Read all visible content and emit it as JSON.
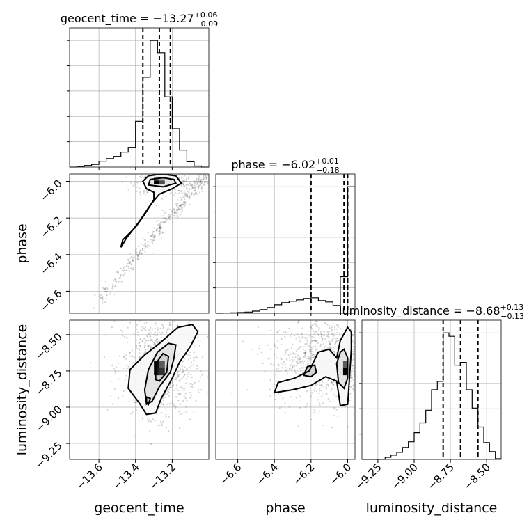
{
  "chart_data": {
    "type": "corner",
    "parameters": [
      {
        "name": "geocent_time",
        "label": "geocent_time",
        "title_prefix": "geocent_time = ",
        "median": "−13.27",
        "plus": "+0.06",
        "minus": "−0.09",
        "range": [
          -13.76,
          -13.0
        ],
        "ticks": [
          -13.6,
          -13.4,
          -13.2
        ],
        "tick_labels": [
          "−13.6",
          "−13.4",
          "−13.2"
        ],
        "quantiles": [
          -13.36,
          -13.27,
          -13.21
        ],
        "hist_bins": [
          -13.76,
          -13.72,
          -13.68,
          -13.64,
          -13.6,
          -13.56,
          -13.52,
          -13.48,
          -13.44,
          -13.4,
          -13.36,
          -13.32,
          -13.28,
          -13.24,
          -13.2,
          -13.16,
          -13.12,
          -13.08,
          -13.04,
          -13.0
        ],
        "hist_counts": [
          0,
          0.2,
          0.6,
          1.0,
          2.2,
          3.2,
          4.0,
          5.6,
          7.4,
          17.2,
          33.8,
          47.6,
          43.0,
          26.4,
          14.4,
          6.4,
          2.0,
          0.4,
          0
        ]
      },
      {
        "name": "phase",
        "label": "phase",
        "title_prefix": "phase = ",
        "median": "−6.02",
        "plus": "+0.01",
        "minus": "−0.18",
        "range": [
          -6.72,
          -5.96
        ],
        "ticks": [
          -6.6,
          -6.4,
          -6.2,
          -6.0
        ],
        "tick_labels": [
          "−6.6",
          "−6.4",
          "−6.2",
          "−6.0"
        ],
        "quantiles": [
          -6.2,
          -6.02,
          -6.0
        ],
        "hist_bins": [
          -6.72,
          -6.68,
          -6.64,
          -6.6,
          -6.56,
          -6.52,
          -6.48,
          -6.44,
          -6.4,
          -6.36,
          -6.32,
          -6.28,
          -6.24,
          -6.2,
          -6.16,
          -6.12,
          -6.08,
          -6.04,
          -6.0,
          -5.96
        ],
        "hist_counts": [
          0,
          0.1,
          0.2,
          0.3,
          0.5,
          0.9,
          1.5,
          2.4,
          3.6,
          4.5,
          5.1,
          5.7,
          6.3,
          6.6,
          5.4,
          4.8,
          3.3,
          15.6,
          54.0
        ]
      },
      {
        "name": "luminosity_distance",
        "label": "luminosity_distance",
        "title_prefix": "luminosity_distance = ",
        "median": "−8.68",
        "plus": "+0.13",
        "minus": "−0.13",
        "range": [
          -9.36,
          -8.4
        ],
        "ticks": [
          -9.25,
          -9.0,
          -8.75,
          -8.5
        ],
        "tick_labels": [
          "−9.25",
          "−9.00",
          "−8.75",
          "−8.50"
        ],
        "quantiles": [
          -8.8,
          -8.68,
          -8.56
        ],
        "hist_bins": [
          -9.36,
          -9.32,
          -9.28,
          -9.24,
          -9.2,
          -9.16,
          -9.12,
          -9.08,
          -9.04,
          -9.0,
          -8.96,
          -8.92,
          -8.88,
          -8.84,
          -8.8,
          -8.76,
          -8.72,
          -8.68,
          -8.64,
          -8.6,
          -8.56,
          -8.52,
          -8.48,
          -8.44,
          -8.4
        ],
        "hist_counts": [
          0,
          0,
          0,
          0,
          0.6,
          1.2,
          2.0,
          3.4,
          5.0,
          7.6,
          10.4,
          14.0,
          19.8,
          22.2,
          36.0,
          35.0,
          26.8,
          27.6,
          19.8,
          14.6,
          9.2,
          4.8,
          2.2,
          0.2
        ]
      }
    ],
    "pairs": [
      {
        "x": "geocent_time",
        "y": "phase",
        "cloud": {
          "type": "line",
          "from": [
            -13.61,
            -6.66
          ],
          "to": [
            -13.01,
            -5.96
          ],
          "spread_x": 0.035,
          "spread_y": 0.03,
          "count": 380
        },
        "cloud2": {
          "center": [
            -13.24,
            -6.01
          ],
          "spread": [
            0.08,
            0.03
          ],
          "count": 260
        },
        "contours": [
          [
            [
              -13.48,
              -6.36
            ],
            [
              -13.47,
              -6.32
            ],
            [
              -13.4,
              -6.25
            ],
            [
              -13.35,
              -6.18
            ],
            [
              -13.3,
              -6.1
            ],
            [
              -13.3,
              -6.06
            ],
            [
              -13.34,
              -6.04
            ],
            [
              -13.36,
              -6.0
            ],
            [
              -13.33,
              -5.97
            ],
            [
              -13.26,
              -5.96
            ],
            [
              -13.18,
              -5.97
            ],
            [
              -13.15,
              -6.01
            ],
            [
              -13.2,
              -6.04
            ],
            [
              -13.27,
              -6.07
            ],
            [
              -13.32,
              -6.13
            ],
            [
              -13.38,
              -6.22
            ],
            [
              -13.45,
              -6.31
            ],
            [
              -13.48,
              -6.36
            ]
          ],
          [
            [
              -13.33,
              -6.02
            ],
            [
              -13.32,
              -5.99
            ],
            [
              -13.25,
              -5.98
            ],
            [
              -13.19,
              -5.99
            ],
            [
              -13.18,
              -6.01
            ],
            [
              -13.25,
              -6.03
            ],
            [
              -13.33,
              -6.02
            ]
          ]
        ],
        "cells": [
          {
            "x": -13.3,
            "y": -6.015,
            "w": 0.03,
            "h": 0.02,
            "shade": 0.0
          },
          {
            "x": -13.27,
            "y": -6.015,
            "w": 0.03,
            "h": 0.02,
            "shade": 0.3
          },
          {
            "x": -13.3,
            "y": -5.995,
            "w": 0.03,
            "h": 0.02,
            "shade": 0.55
          },
          {
            "x": -13.27,
            "y": -5.995,
            "w": 0.03,
            "h": 0.02,
            "shade": 0.7
          }
        ]
      },
      {
        "x": "geocent_time",
        "y": "luminosity_distance",
        "cloud": {
          "type": "gauss",
          "center": [
            -13.27,
            -8.72
          ],
          "spread": [
            0.1,
            0.17
          ],
          "count": 900
        },
        "contours": [
          [
            [
              -13.34,
              -9.05
            ],
            [
              -13.38,
              -8.97
            ],
            [
              -13.44,
              -8.87
            ],
            [
              -13.43,
              -8.74
            ],
            [
              -13.35,
              -8.64
            ],
            [
              -13.26,
              -8.55
            ],
            [
              -13.17,
              -8.45
            ],
            [
              -13.09,
              -8.43
            ],
            [
              -13.06,
              -8.48
            ],
            [
              -13.1,
              -8.58
            ],
            [
              -13.16,
              -8.69
            ],
            [
              -13.2,
              -8.8
            ],
            [
              -13.26,
              -8.94
            ],
            [
              -13.29,
              -9.04
            ],
            [
              -13.34,
              -9.05
            ]
          ],
          [
            [
              -13.34,
              -8.98
            ],
            [
              -13.35,
              -8.88
            ],
            [
              -13.33,
              -8.74
            ],
            [
              -13.28,
              -8.62
            ],
            [
              -13.22,
              -8.56
            ],
            [
              -13.18,
              -8.57
            ],
            [
              -13.19,
              -8.66
            ],
            [
              -13.21,
              -8.76
            ],
            [
              -13.27,
              -8.86
            ],
            [
              -13.31,
              -8.96
            ],
            [
              -13.34,
              -8.98
            ]
          ],
          [
            [
              -13.29,
              -8.81
            ],
            [
              -13.29,
              -8.7
            ],
            [
              -13.25,
              -8.63
            ],
            [
              -13.22,
              -8.65
            ],
            [
              -13.23,
              -8.76
            ],
            [
              -13.27,
              -8.82
            ],
            [
              -13.29,
              -8.81
            ]
          ],
          [
            [
              -13.34,
              -8.96
            ],
            [
              -13.34,
              -8.93
            ],
            [
              -13.32,
              -8.94
            ],
            [
              -13.33,
              -8.98
            ],
            [
              -13.34,
              -8.96
            ]
          ]
        ],
        "cells": [
          {
            "x": -13.3,
            "y": -8.78,
            "w": 0.03,
            "h": 0.05,
            "shade": 0.1
          },
          {
            "x": -13.27,
            "y": -8.78,
            "w": 0.03,
            "h": 0.05,
            "shade": 0.2
          },
          {
            "x": -13.3,
            "y": -8.73,
            "w": 0.03,
            "h": 0.05,
            "shade": 0.05
          },
          {
            "x": -13.27,
            "y": -8.73,
            "w": 0.03,
            "h": 0.05,
            "shade": 0.35
          }
        ]
      },
      {
        "x": "phase",
        "y": "luminosity_distance",
        "cloud": {
          "type": "gauss",
          "center": [
            -6.1,
            -8.68
          ],
          "spread": [
            0.16,
            0.15
          ],
          "count": 1000
        },
        "contours": [
          [
            [
              -6.4,
              -8.9
            ],
            [
              -6.38,
              -8.83
            ],
            [
              -6.29,
              -8.8
            ],
            [
              -6.21,
              -8.75
            ],
            [
              -6.16,
              -8.62
            ],
            [
              -6.1,
              -8.6
            ],
            [
              -6.06,
              -8.66
            ],
            [
              -6.04,
              -8.54
            ],
            [
              -6.0,
              -8.45
            ],
            [
              -5.98,
              -8.48
            ],
            [
              -5.98,
              -8.6
            ],
            [
              -5.99,
              -8.8
            ],
            [
              -6.0,
              -8.98
            ],
            [
              -6.04,
              -8.99
            ],
            [
              -6.06,
              -8.82
            ],
            [
              -6.12,
              -8.79
            ],
            [
              -6.2,
              -8.85
            ],
            [
              -6.3,
              -8.88
            ],
            [
              -6.4,
              -8.9
            ]
          ],
          [
            [
              -6.05,
              -8.83
            ],
            [
              -6.06,
              -8.7
            ],
            [
              -6.04,
              -8.62
            ],
            [
              -6.02,
              -8.6
            ],
            [
              -6.0,
              -8.66
            ],
            [
              -6.0,
              -8.8
            ],
            [
              -6.02,
              -8.87
            ],
            [
              -6.05,
              -8.83
            ]
          ],
          [
            [
              -6.24,
              -8.78
            ],
            [
              -6.22,
              -8.72
            ],
            [
              -6.18,
              -8.71
            ],
            [
              -6.17,
              -8.76
            ],
            [
              -6.2,
              -8.79
            ],
            [
              -6.24,
              -8.78
            ]
          ]
        ],
        "cells": [
          {
            "x": -6.025,
            "y": -8.78,
            "w": 0.025,
            "h": 0.05,
            "shade": 0.0
          },
          {
            "x": -6.025,
            "y": -8.73,
            "w": 0.025,
            "h": 0.05,
            "shade": 0.35
          }
        ]
      }
    ]
  }
}
